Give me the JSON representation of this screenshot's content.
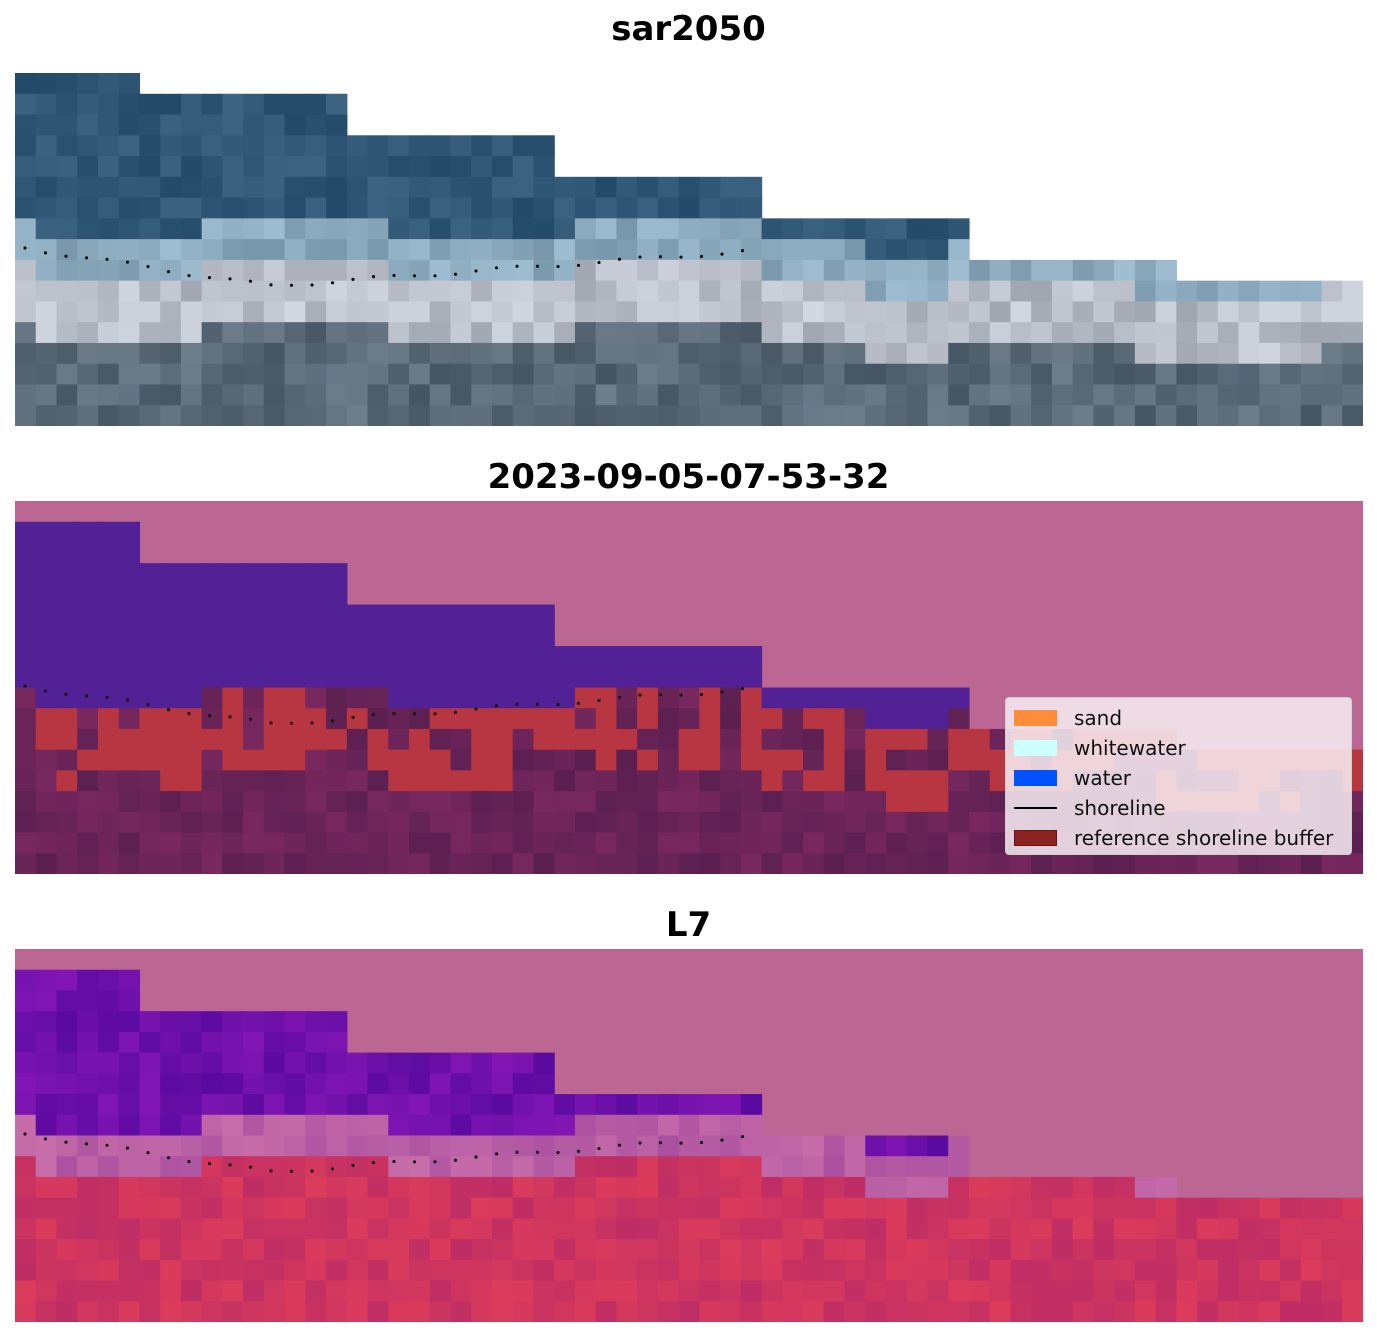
{
  "panels": [
    {
      "title": "sar2050",
      "kind": "rgb"
    },
    {
      "title": "2023-09-05-07-53-32",
      "kind": "classified"
    },
    {
      "title": "L7",
      "kind": "index"
    }
  ],
  "legend": {
    "items": [
      {
        "label": "sand",
        "kind": "patch",
        "color": "#ff8c3a"
      },
      {
        "label": "whitewater",
        "kind": "patch",
        "color": "#ccffff"
      },
      {
        "label": "water",
        "kind": "patch",
        "color": "#0052ff"
      },
      {
        "label": "shoreline",
        "kind": "line",
        "color": "#000000"
      },
      {
        "label": "reference shoreline buffer",
        "kind": "patch",
        "color": "#8b2323"
      }
    ]
  },
  "colors": {
    "background_mask": "#bc6694",
    "water_class": "#522196",
    "buffer_class": "#b83641",
    "index_low": "#5c0aa0",
    "index_high": "#c8305c"
  }
}
